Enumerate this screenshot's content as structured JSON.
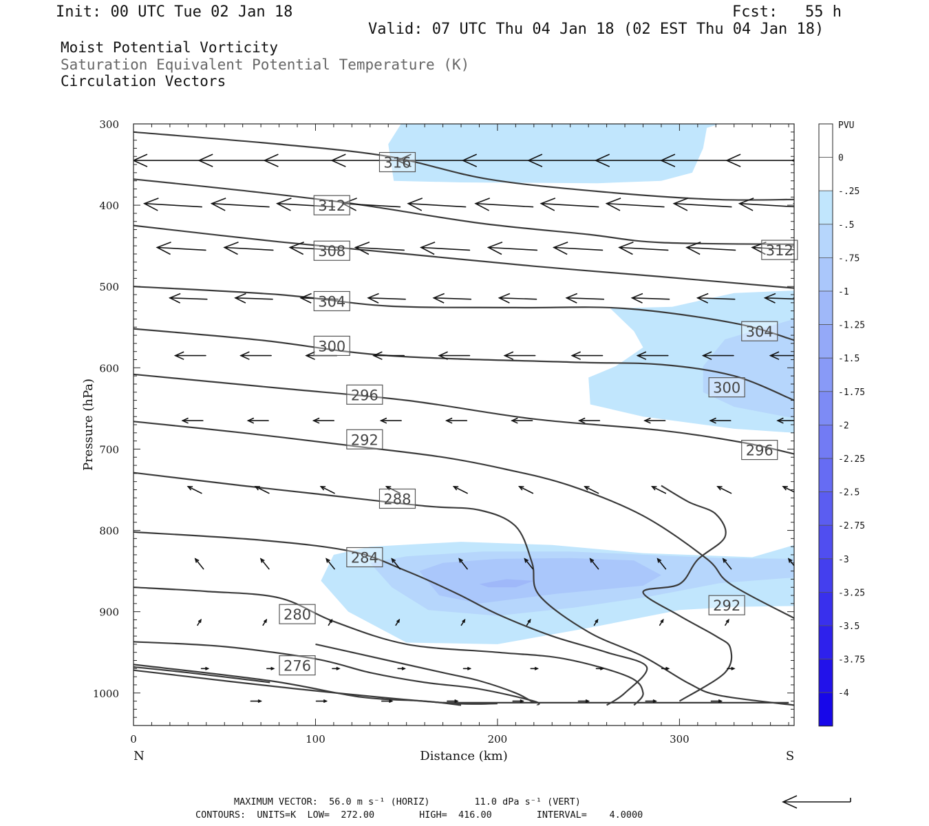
{
  "header": {
    "init": "Init: 00 UTC Tue 02 Jan 18",
    "fcst": "Fcst:   55 h",
    "valid": "Valid: 07 UTC Thu 04 Jan 18 (02 EST Thu 04 Jan 18)",
    "fields": [
      "Moist Potential Vorticity",
      "Saturation Equivalent Potential Temperature (K)",
      "Circulation Vectors"
    ],
    "field_colors": [
      "#111111",
      "#666666",
      "#111111"
    ]
  },
  "footer": {
    "line1": "MAXIMUM VECTOR:  56.0 m s⁻¹ (HORIZ)        11.0 dPa s⁻¹ (VERT)",
    "line2": "CONTOURS:  UNITS=K  LOW=  272.00        HIGH=  416.00        INTERVAL=    4.0000"
  },
  "chart_data": {
    "type": "cross-section",
    "xlabel": "Distance (km)",
    "ylabel": "Pressure (hPa)",
    "xlim": [
      0,
      363
    ],
    "ylim": [
      300,
      1040
    ],
    "x_ticks": [
      0,
      100,
      200,
      300
    ],
    "y_ticks": [
      300,
      400,
      500,
      600,
      700,
      800,
      900,
      1000
    ],
    "x_end_labels": {
      "left": "N",
      "right": "S"
    },
    "colorbar": {
      "unit": "PVU",
      "labels": [
        "0",
        "-.25",
        "-.5",
        "-.75",
        "-1",
        "-1.25",
        "-1.5",
        "-1.75",
        "-2",
        "-2.25",
        "-2.5",
        "-2.75",
        "-3",
        "-3.25",
        "-3.5",
        "-3.75",
        "-4"
      ],
      "colors": [
        "#ffffff",
        "#ffffff",
        "#c1e6fd",
        "#b6d6fc",
        "#aac7fb",
        "#9fb8f9",
        "#94a9f8",
        "#889af7",
        "#7d8bf5",
        "#727bf4",
        "#666cf3",
        "#5b5df1",
        "#504ef0",
        "#443fee",
        "#3930ed",
        "#2e21ec",
        "#2212ea",
        "#1707e9"
      ]
    },
    "pv_regions": [
      {
        "level": -0.25,
        "color": "#c1e6fd",
        "points": [
          [
            147,
            300
          ],
          [
            140,
            325
          ],
          [
            143,
            370
          ],
          [
            180,
            372
          ],
          [
            255,
            373
          ],
          [
            290,
            370
          ],
          [
            307,
            360
          ],
          [
            313,
            330
          ],
          [
            315,
            305
          ],
          [
            322,
            300
          ]
        ]
      },
      {
        "level": -0.25,
        "color": "#c1e6fd",
        "points": [
          [
            363,
            505
          ],
          [
            330,
            508
          ],
          [
            296,
            525
          ],
          [
            262,
            527
          ],
          [
            275,
            555
          ],
          [
            280,
            575
          ],
          [
            265,
            598
          ],
          [
            250,
            612
          ],
          [
            251,
            645
          ],
          [
            280,
            660
          ],
          [
            330,
            675
          ],
          [
            363,
            680
          ]
        ]
      },
      {
        "level": -0.5,
        "color": "#b6d6fc",
        "points": [
          [
            363,
            540
          ],
          [
            325,
            565
          ],
          [
            313,
            598
          ],
          [
            313,
            630
          ],
          [
            330,
            648
          ],
          [
            363,
            662
          ]
        ]
      },
      {
        "level": -0.25,
        "color": "#c1e6fd",
        "points": [
          [
            110,
            830
          ],
          [
            103,
            862
          ],
          [
            118,
            900
          ],
          [
            150,
            938
          ],
          [
            200,
            940
          ],
          [
            250,
            920
          ],
          [
            300,
            898
          ],
          [
            330,
            894
          ],
          [
            363,
            893
          ],
          [
            363,
            818
          ],
          [
            340,
            833
          ],
          [
            280,
            828
          ],
          [
            230,
            818
          ],
          [
            180,
            814
          ],
          [
            130,
            820
          ]
        ]
      },
      {
        "level": -0.5,
        "color": "#b6d6fc",
        "points": [
          [
            130,
            840
          ],
          [
            142,
            870
          ],
          [
            162,
            898
          ],
          [
            200,
            905
          ],
          [
            242,
            895
          ],
          [
            282,
            882
          ],
          [
            322,
            865
          ],
          [
            363,
            858
          ],
          [
            363,
            835
          ],
          [
            322,
            834
          ],
          [
            282,
            830
          ],
          [
            240,
            826
          ],
          [
            192,
            826
          ],
          [
            150,
            832
          ]
        ]
      },
      {
        "level": -0.75,
        "color": "#aac7fb",
        "points": [
          [
            157,
            850
          ],
          [
            168,
            880
          ],
          [
            190,
            890
          ],
          [
            232,
            878
          ],
          [
            280,
            868
          ],
          [
            290,
            855
          ],
          [
            275,
            837
          ],
          [
            240,
            834
          ],
          [
            200,
            835
          ],
          [
            170,
            840
          ]
        ]
      },
      {
        "level": -1.0,
        "color": "#9fb8f9",
        "points": [
          [
            190,
            866
          ],
          [
            205,
            860
          ],
          [
            220,
            862
          ],
          [
            210,
            870
          ],
          [
            195,
            870
          ]
        ]
      }
    ],
    "theta_contours": [
      {
        "points": [
          [
            0,
            310
          ],
          [
            80,
            325
          ],
          [
            140,
            340
          ],
          [
            195,
            368
          ],
          [
            260,
            384
          ],
          [
            320,
            393
          ],
          [
            363,
            393
          ]
        ]
      },
      {
        "points": [
          [
            0,
            368
          ],
          [
            60,
            382
          ],
          [
            120,
            398
          ],
          [
            190,
            422
          ],
          [
            250,
            436
          ],
          [
            290,
            446
          ],
          [
            363,
            448
          ]
        ]
      },
      {
        "points": [
          [
            0,
            425
          ],
          [
            80,
            445
          ],
          [
            150,
            460
          ],
          [
            220,
            475
          ],
          [
            290,
            488
          ],
          [
            363,
            502
          ]
        ]
      },
      {
        "points": [
          [
            0,
            500
          ],
          [
            80,
            510
          ],
          [
            140,
            524
          ],
          [
            210,
            526
          ],
          [
            270,
            527
          ],
          [
            330,
            545
          ],
          [
            363,
            566
          ]
        ]
      },
      {
        "points": [
          [
            0,
            552
          ],
          [
            70,
            566
          ],
          [
            140,
            585
          ],
          [
            240,
            593
          ],
          [
            290,
            596
          ],
          [
            330,
            610
          ],
          [
            363,
            640
          ]
        ]
      },
      {
        "points": [
          [
            0,
            608
          ],
          [
            80,
            625
          ],
          [
            150,
            640
          ],
          [
            220,
            663
          ],
          [
            290,
            677
          ],
          [
            335,
            692
          ],
          [
            363,
            706
          ]
        ]
      },
      {
        "points": [
          [
            0,
            666
          ],
          [
            60,
            680
          ],
          [
            120,
            696
          ],
          [
            170,
            710
          ],
          [
            205,
            725
          ],
          [
            240,
            745
          ],
          [
            280,
            782
          ],
          [
            315,
            835
          ],
          [
            328,
            866
          ],
          [
            363,
            908
          ]
        ]
      },
      {
        "points": [
          [
            0,
            729
          ],
          [
            60,
            745
          ],
          [
            100,
            755
          ],
          [
            160,
            770
          ],
          [
            190,
            775
          ],
          [
            210,
            795
          ],
          [
            219,
            840
          ],
          [
            223,
            880
          ],
          [
            250,
            925
          ],
          [
            280,
            955
          ],
          [
            305,
            988
          ],
          [
            322,
            1003
          ],
          [
            363,
            1015
          ]
        ]
      },
      {
        "points": [
          [
            0,
            802
          ],
          [
            70,
            812
          ],
          [
            120,
            826
          ],
          [
            150,
            850
          ],
          [
            178,
            878
          ],
          [
            200,
            903
          ],
          [
            230,
            930
          ],
          [
            260,
            950
          ],
          [
            282,
            968
          ],
          [
            270,
            1000
          ],
          [
            260,
            1015
          ]
        ]
      },
      {
        "points": [
          [
            0,
            870
          ],
          [
            40,
            875
          ],
          [
            80,
            883
          ],
          [
            110,
            912
          ],
          [
            150,
            940
          ],
          [
            200,
            950
          ],
          [
            237,
            958
          ],
          [
            272,
            980
          ],
          [
            280,
            1000
          ],
          [
            275,
            1015
          ]
        ]
      },
      {
        "points": [
          [
            0,
            937
          ],
          [
            50,
            943
          ],
          [
            100,
            958
          ],
          [
            130,
            975
          ],
          [
            160,
            987
          ],
          [
            190,
            995
          ],
          [
            220,
            1010
          ],
          [
            222,
            1015
          ]
        ]
      },
      {
        "points": [
          [
            0,
            965
          ],
          [
            75,
            985
          ],
          [
            125,
            1005
          ],
          [
            160,
            1010
          ],
          [
            180,
            1015
          ]
        ]
      },
      {
        "points": [
          [
            0,
            972
          ],
          [
            90,
            995
          ],
          [
            170,
            1012
          ],
          [
            200,
            1013
          ]
        ]
      },
      {
        "points": [
          [
            170,
            1012
          ],
          [
            360,
            1012
          ]
        ]
      },
      {
        "points": [
          [
            0,
            968
          ],
          [
            30,
            975
          ],
          [
            75,
            987
          ]
        ]
      },
      {
        "points": [
          [
            100,
            940
          ],
          [
            140,
            960
          ],
          [
            170,
            975
          ],
          [
            190,
            985
          ],
          [
            210,
            1000
          ],
          [
            220,
            1012
          ]
        ]
      },
      {
        "points": [
          [
            300,
            1010
          ],
          [
            325,
            975
          ],
          [
            328,
            945
          ],
          [
            320,
            930
          ],
          [
            300,
            905
          ],
          [
            280,
            876
          ],
          [
            300,
            866
          ],
          [
            310,
            836
          ],
          [
            325,
            808
          ],
          [
            320,
            780
          ],
          [
            305,
            765
          ],
          [
            290,
            745
          ]
        ]
      }
    ],
    "contour_labels": [
      {
        "text": "316",
        "x": 145,
        "y": 347
      },
      {
        "text": "312",
        "x": 109,
        "y": 400
      },
      {
        "text": "308",
        "x": 109,
        "y": 456
      },
      {
        "text": "304",
        "x": 109,
        "y": 518
      },
      {
        "text": "300",
        "x": 109,
        "y": 573
      },
      {
        "text": "296",
        "x": 127,
        "y": 633
      },
      {
        "text": "292",
        "x": 127,
        "y": 688
      },
      {
        "text": "288",
        "x": 145,
        "y": 761
      },
      {
        "text": "284",
        "x": 127,
        "y": 833
      },
      {
        "text": "280",
        "x": 90,
        "y": 903
      },
      {
        "text": "276",
        "x": 90,
        "y": 966
      },
      {
        "text": "312",
        "x": 355,
        "y": 455
      },
      {
        "text": "304",
        "x": 344,
        "y": 555
      },
      {
        "text": "300",
        "x": 326,
        "y": 624
      },
      {
        "text": "296",
        "x": 344,
        "y": 701
      },
      {
        "text": "292",
        "x": 326,
        "y": 892
      }
    ],
    "vector_rows": [
      {
        "pressure": 345,
        "xs": [
          0,
          36,
          72,
          109,
          145,
          181,
          217,
          254,
          290,
          326,
          362
        ],
        "u": [
          -1.0
        ],
        "w": [
          0.0
        ]
      },
      {
        "pressure": 398,
        "xs": [
          6,
          43,
          79,
          115,
          151,
          188,
          224,
          260,
          297,
          333,
          363
        ],
        "u": [
          -0.85
        ],
        "w": [
          0.05
        ]
      },
      {
        "pressure": 452,
        "xs": [
          13,
          50,
          86,
          122,
          158,
          195,
          231,
          267,
          304,
          340,
          363
        ],
        "u": [
          -0.72
        ],
        "w": [
          0.04
        ]
      },
      {
        "pressure": 514,
        "xs": [
          20,
          56,
          92,
          129,
          165,
          201,
          238,
          274,
          310,
          347,
          363
        ],
        "u": [
          -0.55
        ],
        "w": [
          0.02
        ]
      },
      {
        "pressure": 585,
        "xs": [
          23,
          59,
          95,
          132,
          168,
          204,
          241,
          277,
          313,
          350,
          363
        ],
        "u": [
          -0.45
        ],
        "w": [
          0.0
        ]
      },
      {
        "pressure": 665,
        "xs": [
          27,
          63,
          99,
          136,
          172,
          208,
          245,
          281,
          317,
          354,
          363
        ],
        "u": [
          -0.3
        ],
        "w": [
          0.0
        ]
      },
      {
        "pressure": 746,
        "xs": [
          30,
          67,
          103,
          139,
          176,
          212,
          248,
          285,
          321,
          357
        ],
        "u": [
          -0.2
        ],
        "w": [
          0.1
        ]
      },
      {
        "pressure": 835,
        "xs": [
          34,
          70,
          106,
          142,
          179,
          215,
          251,
          288,
          324,
          360
        ],
        "u": [
          -0.12
        ],
        "w": [
          0.15
        ]
      },
      {
        "pressure": 910,
        "xs": [
          37,
          73,
          109,
          146,
          182,
          218,
          255,
          291,
          327
        ],
        "u": [
          0.05
        ],
        "w": [
          0.08
        ]
      },
      {
        "pressure": 970,
        "xs": [
          41,
          77,
          113,
          149,
          185,
          222,
          258,
          294,
          330
        ],
        "u": [
          0.1
        ],
        "w": [
          0.0
        ]
      },
      {
        "pressure": 1010,
        "xs": [
          70,
          106,
          142,
          178,
          214,
          250,
          287,
          323
        ],
        "u": [
          0.15
        ],
        "w": [
          0.0
        ]
      }
    ],
    "reference_vector": {
      "direction": "left"
    }
  }
}
